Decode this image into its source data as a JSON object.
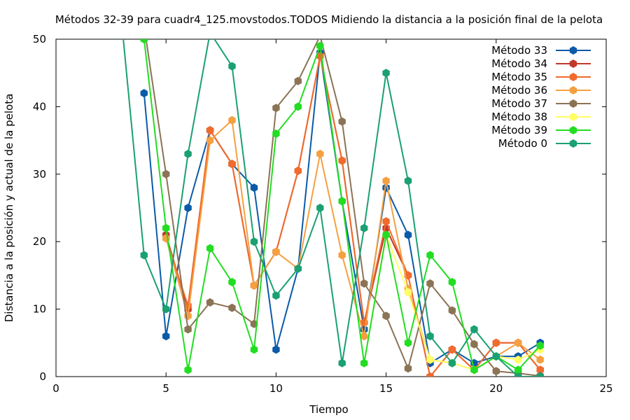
{
  "chart_data": {
    "type": "line",
    "title": "Métodos 32-39 para cuadr4_125.movstodos.TODOS Midiendo la distancia a la posición final de la pelota",
    "xlabel": "Tiempo",
    "ylabel": "Distancia a la posición y actual de la pelota",
    "xlim": [
      0,
      25
    ],
    "ylim": [
      0,
      50
    ],
    "xticks": [
      0,
      5,
      10,
      15,
      20,
      25
    ],
    "yticks": [
      0,
      10,
      20,
      30,
      40,
      50
    ],
    "grid": false,
    "legend_position": "top-right",
    "series": [
      {
        "name": "Método 33",
        "color": "#0a5aa8",
        "marker": "hexagon",
        "points": [
          [
            4,
            42
          ],
          [
            5,
            6
          ],
          [
            6,
            25
          ],
          [
            7,
            36.5
          ],
          [
            8,
            31.5
          ],
          [
            9,
            28
          ],
          [
            10,
            4
          ],
          [
            11,
            16
          ],
          [
            12,
            48
          ],
          [
            13,
            26
          ],
          [
            14,
            7
          ],
          [
            15,
            28
          ],
          [
            16,
            21
          ],
          [
            17,
            2
          ],
          [
            18,
            4
          ],
          [
            19,
            2
          ],
          [
            20,
            3
          ],
          [
            21,
            3
          ],
          [
            22,
            5
          ]
        ]
      },
      {
        "name": "Método 34",
        "color": "#c0392b",
        "marker": "hexagon",
        "points": [
          [
            5,
            21
          ],
          [
            6,
            10
          ],
          [
            7,
            36.5
          ],
          [
            8,
            31.5
          ],
          [
            9,
            13.5
          ],
          [
            10,
            18.5
          ],
          [
            11,
            30.5
          ],
          [
            12,
            47.5
          ],
          [
            13,
            32
          ],
          [
            14,
            8
          ],
          [
            15,
            22
          ],
          [
            16,
            15
          ],
          [
            17,
            0
          ],
          [
            18,
            4
          ],
          [
            19,
            1
          ],
          [
            20,
            5
          ],
          [
            21,
            5
          ],
          [
            22,
            1
          ]
        ]
      },
      {
        "name": "Método 35",
        "color": "#f06b2c",
        "marker": "hexagon",
        "points": [
          [
            5,
            20.5
          ],
          [
            6,
            10.5
          ],
          [
            7,
            36.5
          ],
          [
            8,
            31.5
          ],
          [
            9,
            13.5
          ],
          [
            10,
            18.5
          ],
          [
            11,
            30.5
          ],
          [
            12,
            47.5
          ],
          [
            13,
            32
          ],
          [
            14,
            8
          ],
          [
            15,
            23
          ],
          [
            16,
            15
          ],
          [
            17,
            0
          ],
          [
            18,
            4
          ],
          [
            19,
            1
          ],
          [
            20,
            5
          ],
          [
            21,
            5
          ],
          [
            22,
            1
          ]
        ]
      },
      {
        "name": "Método 36",
        "color": "#f5a040",
        "marker": "hexagon",
        "points": [
          [
            5,
            20.5
          ],
          [
            6,
            9
          ],
          [
            7,
            35
          ],
          [
            8,
            38
          ],
          [
            9,
            13.5
          ],
          [
            10,
            18.5
          ],
          [
            11,
            16
          ],
          [
            12,
            33
          ],
          [
            13,
            18
          ],
          [
            14,
            6
          ],
          [
            15,
            29
          ],
          [
            16,
            13
          ],
          [
            17,
            2.5
          ],
          [
            18,
            2
          ],
          [
            19,
            1
          ],
          [
            20,
            3
          ],
          [
            21,
            5
          ],
          [
            22,
            2.5
          ]
        ]
      },
      {
        "name": "Método 37",
        "color": "#8b7355",
        "marker": "hexagon",
        "points": [
          [
            4,
            52
          ],
          [
            5,
            30
          ],
          [
            6,
            7
          ],
          [
            7,
            11
          ],
          [
            8,
            10.2
          ],
          [
            9,
            7.8
          ],
          [
            10,
            39.8
          ],
          [
            11,
            43.8
          ],
          [
            12,
            50.5
          ],
          [
            13,
            37.8
          ],
          [
            14,
            13.8
          ],
          [
            15,
            9
          ],
          [
            16,
            1.2
          ],
          [
            17,
            13.8
          ],
          [
            18,
            9.8
          ],
          [
            19,
            4.8
          ],
          [
            20,
            0.8
          ],
          [
            21,
            0.5
          ],
          [
            22,
            0.1
          ]
        ]
      },
      {
        "name": "Método 38",
        "color": "#ffff66",
        "marker": "hexagon",
        "points": [
          [
            14,
            2
          ],
          [
            15,
            21
          ],
          [
            16,
            12.5
          ],
          [
            17,
            2.5
          ],
          [
            18,
            2
          ],
          [
            19,
            1
          ],
          [
            20,
            3
          ],
          [
            21,
            2.5
          ],
          [
            22,
            4
          ]
        ]
      },
      {
        "name": "Método 39",
        "color": "#22dd22",
        "marker": "hexagon",
        "points": [
          [
            4,
            50
          ],
          [
            5,
            22
          ],
          [
            6,
            1
          ],
          [
            7,
            19
          ],
          [
            8,
            14
          ],
          [
            9,
            4
          ],
          [
            10,
            36
          ],
          [
            11,
            40
          ],
          [
            12,
            49
          ],
          [
            13,
            26
          ],
          [
            14,
            2
          ],
          [
            15,
            21
          ],
          [
            16,
            5
          ],
          [
            17,
            18
          ],
          [
            18,
            14
          ],
          [
            19,
            1
          ],
          [
            20,
            3
          ],
          [
            21,
            1
          ],
          [
            22,
            4.6
          ]
        ]
      },
      {
        "name": "Método 0",
        "color": "#1aa071",
        "marker": "hexagon",
        "points": [
          [
            3,
            52
          ],
          [
            4,
            18
          ],
          [
            5,
            10
          ],
          [
            6,
            33
          ],
          [
            7,
            51
          ],
          [
            8,
            46
          ],
          [
            9,
            20
          ],
          [
            10,
            12
          ],
          [
            11,
            16
          ],
          [
            12,
            25
          ],
          [
            13,
            2
          ],
          [
            14,
            22
          ],
          [
            15,
            45
          ],
          [
            16,
            29
          ],
          [
            17,
            6
          ],
          [
            18,
            2
          ],
          [
            19,
            7
          ],
          [
            20,
            3
          ],
          [
            21,
            0
          ],
          [
            22,
            0
          ]
        ]
      }
    ]
  }
}
